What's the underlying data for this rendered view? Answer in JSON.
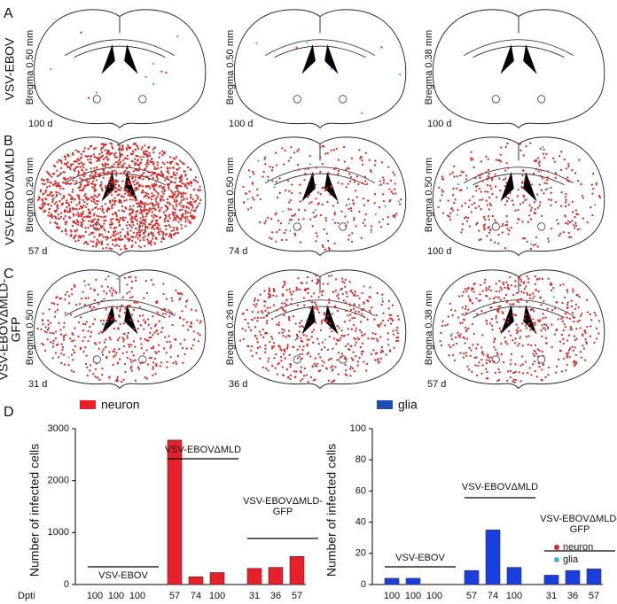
{
  "panels": {
    "letters": [
      "A",
      "B",
      "C"
    ],
    "rows": [
      {
        "label": [
          "VSV-EBOV"
        ],
        "sections": [
          {
            "bregma": "Bregma 0.50 mm",
            "day": "100 d"
          },
          {
            "bregma": "Bregma 0.50 mm",
            "day": "100 d"
          },
          {
            "bregma": "Bregma 0.38 mm",
            "day": "100 d"
          }
        ]
      },
      {
        "label": [
          "VSV-EBOVΔMLD"
        ],
        "sections": [
          {
            "bregma": "Bregma 0.26 mm",
            "day": "57 d"
          },
          {
            "bregma": "Bregma 0.50 mm",
            "day": "74 d"
          },
          {
            "bregma": "Bregma 0.50 mm",
            "day": "100 d"
          }
        ]
      },
      {
        "label": [
          "VSV-EBOVΔMLD-",
          "GFP"
        ],
        "sections": [
          {
            "bregma": "Bregma 0.50 mm",
            "day": "31 d"
          },
          {
            "bregma": "Bregma 0.26 mm",
            "day": "36 d"
          },
          {
            "bregma": "Bregma 0.38 mm",
            "day": "57 d"
          }
        ]
      }
    ]
  },
  "cell_legend": [
    {
      "name": "neuron",
      "color": "#d42a2a"
    },
    {
      "name": "glia",
      "color": "#3bb6d6"
    }
  ],
  "chart_data": [
    {
      "type": "bar",
      "panel": "D",
      "series_name": "neuron",
      "color": "#e8202a",
      "y_label": "Number of infected cells",
      "x_label": "Dpti",
      "ylim": [
        0,
        3000
      ],
      "yticks": [
        0,
        1000,
        2000,
        3000
      ],
      "groups": [
        {
          "label": [
            "VSV-EBOV"
          ],
          "categories": [
            "100",
            "100",
            "100"
          ],
          "values": [
            0,
            0,
            0
          ]
        },
        {
          "label": [
            "VSV-EBOVΔMLD"
          ],
          "categories": [
            "57",
            "74",
            "100"
          ],
          "values": [
            2780,
            150,
            230
          ]
        },
        {
          "label": [
            "VSV-EBOVΔMLD-",
            "GFP"
          ],
          "categories": [
            "31",
            "36",
            "57"
          ],
          "values": [
            310,
            330,
            540
          ]
        }
      ]
    },
    {
      "type": "bar",
      "series_name": "glia",
      "color": "#1a3fe0",
      "legend_color": "#1f4fb5",
      "y_label": "Number of infected cells",
      "ylim": [
        0,
        100
      ],
      "yticks": [
        0,
        20,
        40,
        60,
        80,
        100
      ],
      "groups": [
        {
          "label": [
            "VSV-EBOV"
          ],
          "categories": [
            "100",
            "100",
            "100"
          ],
          "values": [
            4,
            4,
            0
          ]
        },
        {
          "label": [
            "VSV-EBOVΔMLD"
          ],
          "categories": [
            "57",
            "74",
            "100"
          ],
          "values": [
            9,
            35,
            11
          ]
        },
        {
          "label": [
            "VSV-EBOVΔMLD-",
            "GFP"
          ],
          "categories": [
            "31",
            "36",
            "57"
          ],
          "values": [
            6,
            9,
            10
          ]
        }
      ]
    }
  ]
}
